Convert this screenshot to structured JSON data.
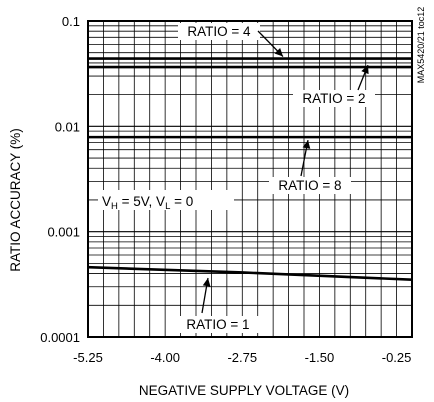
{
  "chart_data": {
    "type": "line",
    "title": "",
    "xlabel": "NEGATIVE SUPPLY VOLTAGE (V)",
    "ylabel": "RATIO ACCURACY (%)",
    "side_label": "MAX5420/21 toc12",
    "x_scale": "linear",
    "y_scale": "log",
    "xlim": [
      -5.25,
      0
    ],
    "ylim": [
      0.0001,
      0.1
    ],
    "x_ticks": [
      -5.25,
      -4.0,
      -2.75,
      -1.5,
      -0.25
    ],
    "x_tick_labels": [
      "-5.25",
      "-4.00",
      "-2.75",
      "-1.50",
      "-0.25"
    ],
    "y_ticks": [
      0.1,
      0.01,
      0.001,
      0.0001
    ],
    "y_tick_labels": [
      "0.1",
      "0.01",
      "0.001",
      "0.0001"
    ],
    "grid": true,
    "condition": {
      "prefix": "V",
      "sub1": "H",
      "mid": " = 5V, V",
      "sub2": "L",
      "suffix": " = 0"
    },
    "series": [
      {
        "name": "RATIO = 4",
        "x": [
          -5.25,
          0
        ],
        "y": [
          0.044,
          0.044
        ]
      },
      {
        "name": "RATIO = 2",
        "x": [
          -5.25,
          0
        ],
        "y": [
          0.0365,
          0.0365
        ]
      },
      {
        "name": "RATIO = 8",
        "x": [
          -5.25,
          0
        ],
        "y": [
          0.0079,
          0.0079
        ]
      },
      {
        "name": "RATIO = 1",
        "x": [
          -5.25,
          -2.75,
          0
        ],
        "y": [
          0.00046,
          0.00041,
          0.00035
        ]
      }
    ],
    "line_color": "#000000"
  }
}
